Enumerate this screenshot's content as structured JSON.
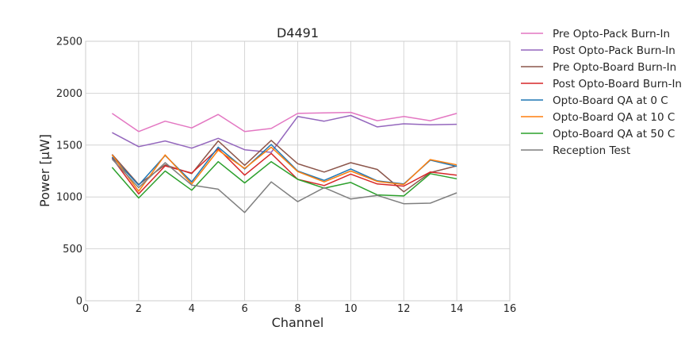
{
  "chart_data": {
    "type": "line",
    "title": "D4491",
    "xlabel": "Channel",
    "ylabel": "Power [μW]",
    "xlim": [
      0,
      16
    ],
    "ylim": [
      0,
      2500
    ],
    "xticks": [
      0,
      2,
      4,
      6,
      8,
      10,
      12,
      14,
      16
    ],
    "yticks": [
      0,
      500,
      1000,
      1500,
      2000,
      2500
    ],
    "grid": true,
    "legend_position": "outside-right",
    "x": [
      1,
      2,
      3,
      4,
      5,
      6,
      7,
      8,
      9,
      10,
      11,
      12,
      13,
      14
    ],
    "series": [
      {
        "name": "Pre Opto-Pack Burn-In",
        "color": "#e377c2",
        "values": [
          1805,
          1630,
          1730,
          1665,
          1795,
          1630,
          1660,
          1805,
          1810,
          1815,
          1735,
          1775,
          1735,
          1805
        ]
      },
      {
        "name": "Post Opto-Pack Burn-In",
        "color": "#9467bd",
        "values": [
          1620,
          1485,
          1540,
          1470,
          1565,
          1455,
          1430,
          1775,
          1730,
          1785,
          1675,
          1705,
          1695,
          1700
        ]
      },
      {
        "name": "Pre Opto-Board Burn-In",
        "color": "#8c564b",
        "values": [
          1410,
          1120,
          1310,
          1225,
          1540,
          1305,
          1545,
          1320,
          1240,
          1330,
          1265,
          1050,
          1235,
          1300
        ]
      },
      {
        "name": "Post Opto-Board Burn-In",
        "color": "#d62728",
        "values": [
          1375,
          1030,
          1300,
          1230,
          1465,
          1210,
          1420,
          1170,
          1110,
          1220,
          1125,
          1105,
          1240,
          1210
        ]
      },
      {
        "name": "Opto-Board QA at 0 C",
        "color": "#1f77b4",
        "values": [
          1385,
          1115,
          1400,
          1145,
          1480,
          1270,
          1505,
          1250,
          1160,
          1270,
          1155,
          1125,
          1355,
          1295
        ]
      },
      {
        "name": "Opto-Board QA at 10 C",
        "color": "#ff7f0e",
        "values": [
          1405,
          1055,
          1405,
          1125,
          1450,
          1275,
          1480,
          1245,
          1145,
          1250,
          1150,
          1120,
          1360,
          1310
        ]
      },
      {
        "name": "Opto-Board QA at 50 C",
        "color": "#2ca02c",
        "values": [
          1285,
          990,
          1250,
          1065,
          1340,
          1135,
          1340,
          1170,
          1085,
          1140,
          1020,
          1010,
          1225,
          1175
        ]
      },
      {
        "name": "Reception Test",
        "color": "#7f7f7f",
        "values": [
          1365,
          1090,
          1330,
          1115,
          1075,
          850,
          1145,
          955,
          1090,
          980,
          1015,
          935,
          940,
          1040
        ]
      }
    ]
  }
}
